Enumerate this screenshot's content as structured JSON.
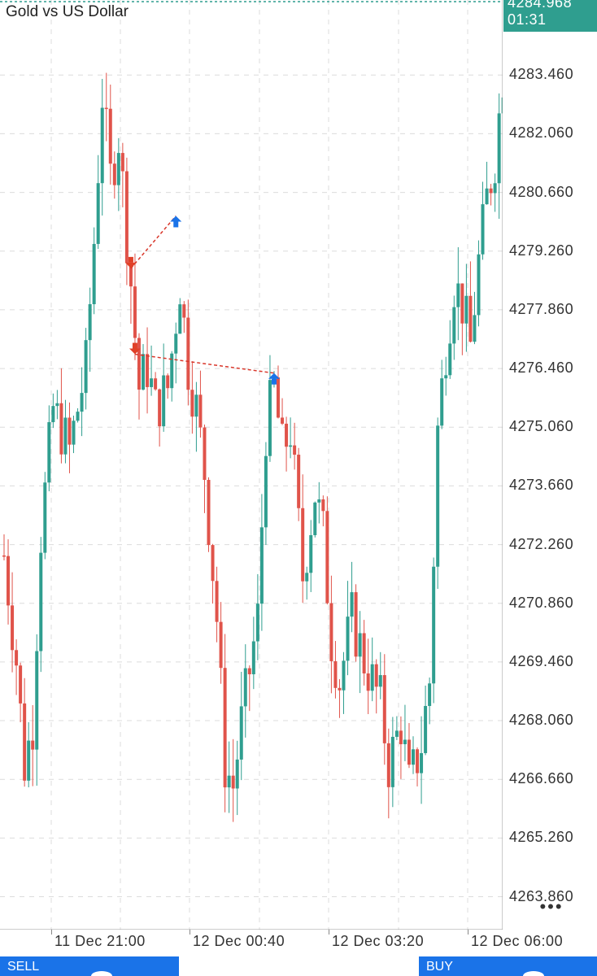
{
  "header": {
    "title": "Gold vs US Dollar"
  },
  "current": {
    "price": "4284.968",
    "timer": "01:31",
    "color": "#2f9e8f"
  },
  "colors": {
    "up": "#2f9e8f",
    "down": "#e0534a",
    "buy_arrow": "#1a73e8",
    "sell_arrow": "#e04028",
    "trade_line": "#d9372b",
    "grid": "#dcdcdc"
  },
  "price_axis": {
    "labels": [
      "4283.460",
      "4282.060",
      "4280.660",
      "4279.260",
      "4277.860",
      "4276.460",
      "4275.060",
      "4273.660",
      "4272.260",
      "4270.860",
      "4269.460",
      "4268.060",
      "4266.660",
      "4265.260",
      "4263.860"
    ],
    "range": [
      4263.075,
      4285.25
    ]
  },
  "time_axis": {
    "labels": [
      "11 Dec 21:00",
      "12 Dec 00:40",
      "12 Dec 03:20",
      "12 Dec 06:00"
    ]
  },
  "menu": {
    "more_icon": "more-dots-icon",
    "more_label": "•••"
  },
  "trade_buttons": {
    "sell_label": "SELL",
    "buy_label": "BUY"
  },
  "chart_data": {
    "type": "candlestick",
    "title": "Gold vs US Dollar",
    "candle_count": 123,
    "close_path": [
      [
        0,
        4272.0
      ],
      [
        3,
        4269.5
      ],
      [
        5,
        4267.0
      ],
      [
        7,
        4268.0
      ],
      [
        9,
        4272.5
      ],
      [
        12,
        4275.5
      ],
      [
        16,
        4274.5
      ],
      [
        20,
        4276.5
      ],
      [
        22,
        4279.5
      ],
      [
        24,
        4283.0
      ],
      [
        26,
        4281.0
      ],
      [
        28,
        4282.0
      ],
      [
        31,
        4278.5
      ],
      [
        33,
        4276.0
      ],
      [
        35,
        4276.5
      ],
      [
        37,
        4275.5
      ],
      [
        40,
        4276.0
      ],
      [
        43,
        4278.5
      ],
      [
        45,
        4276.5
      ],
      [
        47,
        4275.5
      ],
      [
        49,
        4274.0
      ],
      [
        52,
        4270.5
      ],
      [
        54,
        4267.0
      ],
      [
        56,
        4266.5
      ],
      [
        58,
        4268.0
      ],
      [
        62,
        4270.5
      ],
      [
        64,
        4275.0
      ],
      [
        66,
        4276.0
      ],
      [
        68,
        4274.5
      ],
      [
        70,
        4275.0
      ],
      [
        73,
        4271.5
      ],
      [
        76,
        4273.5
      ],
      [
        78,
        4272.5
      ],
      [
        80,
        4270.0
      ],
      [
        82,
        4269.0
      ],
      [
        85,
        4270.5
      ],
      [
        88,
        4269.5
      ],
      [
        92,
        4268.5
      ],
      [
        94,
        4267.0
      ],
      [
        97,
        4268.0
      ],
      [
        99,
        4266.5
      ],
      [
        102,
        4267.5
      ],
      [
        104,
        4269.0
      ],
      [
        106,
        4275.0
      ],
      [
        108,
        4277.0
      ],
      [
        110,
        4278.5
      ],
      [
        112,
        4278.0
      ],
      [
        114,
        4277.0
      ],
      [
        116,
        4279.0
      ],
      [
        118,
        4280.5
      ],
      [
        120,
        4281.5
      ],
      [
        122,
        4283.5
      ]
    ],
    "trades": [
      {
        "side": "sell",
        "candle": 31,
        "price": 4278.85
      },
      {
        "side": "buy",
        "candle": 42,
        "price": 4280.1
      },
      {
        "side": "sell",
        "candle": 32,
        "price": 4276.8
      },
      {
        "side": "buy",
        "candle": 66,
        "price": 4276.35
      }
    ]
  }
}
